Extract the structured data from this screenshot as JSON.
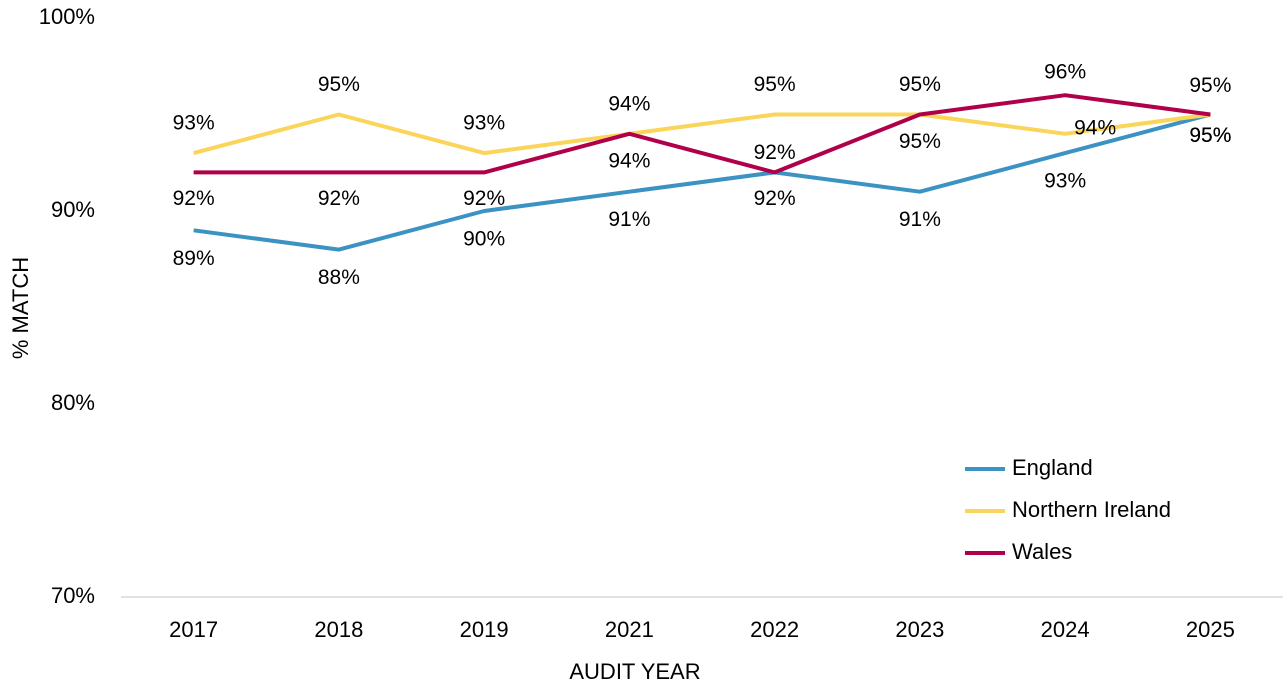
{
  "chart_data": {
    "type": "line",
    "x_label": "AUDIT YEAR",
    "y_label": "% MATCH",
    "categories": [
      "2017",
      "2018",
      "2019",
      "2021",
      "2022",
      "2023",
      "2024",
      "2025"
    ],
    "series": [
      {
        "name": "England",
        "color": "#3a93c3",
        "values": [
          89,
          88,
          90,
          91,
          92,
          91,
          93,
          95
        ],
        "value_labels": [
          "89%",
          "88%",
          "90%",
          "91%",
          "92%",
          "91%",
          "93%",
          "95%"
        ]
      },
      {
        "name": "Northern Ireland",
        "color": "#fbd45a",
        "values": [
          93,
          95,
          93,
          94,
          95,
          95,
          94,
          95
        ],
        "value_labels": [
          "93%",
          "95%",
          "93%",
          "94%",
          "95%",
          "95%",
          "94%",
          "95%"
        ]
      },
      {
        "name": "Wales",
        "color": "#b0004a",
        "values": [
          92,
          92,
          92,
          94,
          92,
          95,
          96,
          95
        ],
        "value_labels": [
          "92%",
          "92%",
          "92%",
          "94%",
          "92%",
          "95%",
          "96%",
          "95%"
        ]
      }
    ],
    "ylim": [
      70,
      100
    ],
    "yticks": [
      {
        "value": 70,
        "label": "70%"
      },
      {
        "value": 80,
        "label": "80%"
      },
      {
        "value": 90,
        "label": "90%"
      },
      {
        "value": 100,
        "label": "100%"
      }
    ],
    "grid": false,
    "legend": "lower right"
  }
}
